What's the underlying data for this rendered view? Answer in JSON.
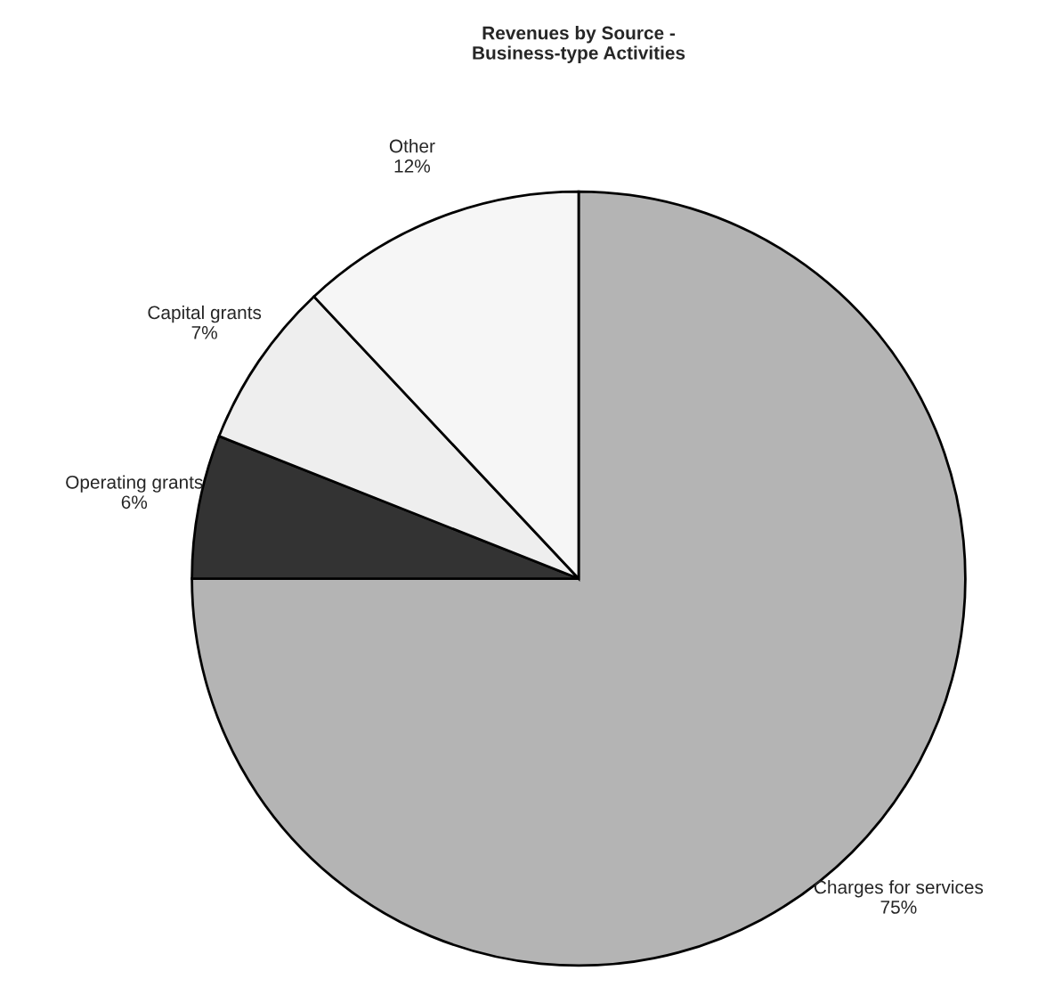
{
  "chart_data": {
    "type": "pie",
    "title": "Revenues by Source -\nBusiness-type Activities",
    "categories": [
      "Charges for services",
      "Operating grants",
      "Capital grants",
      "Other"
    ],
    "values": [
      75,
      6,
      7,
      12
    ],
    "value_labels": [
      "75%",
      "6%",
      "7%",
      "12%"
    ],
    "colors": [
      "#b4b4b4",
      "#333333",
      "#eeeeee",
      "#f6f6f6"
    ]
  }
}
